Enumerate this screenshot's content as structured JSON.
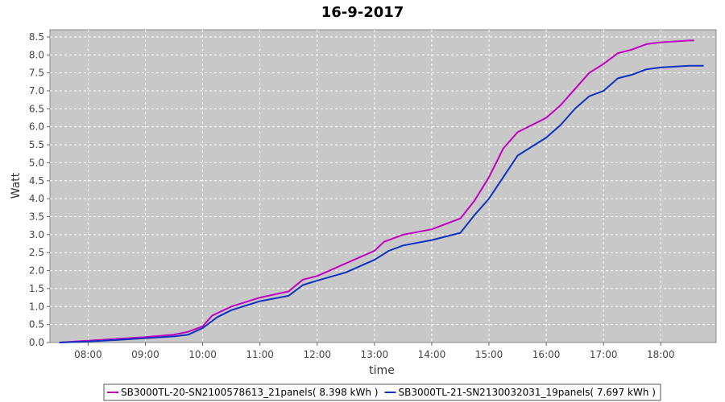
{
  "chart_data": {
    "type": "line",
    "title": "16-9-2017",
    "xlabel": "time",
    "ylabel": "Watt",
    "x_ticks": [
      "08:00",
      "09:00",
      "10:00",
      "11:00",
      "12:00",
      "13:00",
      "14:00",
      "15:00",
      "16:00",
      "17:00",
      "18:00"
    ],
    "x_range": [
      "07:20",
      "18:58"
    ],
    "y_range": [
      0,
      8.7
    ],
    "y_ticks": [
      0.0,
      0.5,
      1.0,
      1.5,
      2.0,
      2.5,
      3.0,
      3.5,
      4.0,
      4.5,
      5.0,
      5.5,
      6.0,
      6.5,
      7.0,
      7.5,
      8.0,
      8.5
    ],
    "grid": true,
    "legend_position": "bottom",
    "plot_background": "#c8c8c8",
    "series": [
      {
        "name": "SB3000TL-20-SN2100578613_21panels( 8.398 kWh )",
        "color": "#c000c0",
        "x": [
          "07:30",
          "08:00",
          "08:30",
          "09:00",
          "09:30",
          "09:45",
          "10:00",
          "10:10",
          "10:30",
          "11:00",
          "11:30",
          "11:45",
          "12:00",
          "12:30",
          "13:00",
          "13:10",
          "13:30",
          "14:00",
          "14:30",
          "14:45",
          "15:00",
          "15:15",
          "15:30",
          "16:00",
          "16:15",
          "16:30",
          "16:45",
          "17:00",
          "17:15",
          "17:30",
          "17:45",
          "18:00",
          "18:30",
          "18:35"
        ],
        "values": [
          0.0,
          0.05,
          0.1,
          0.15,
          0.22,
          0.3,
          0.45,
          0.75,
          1.0,
          1.25,
          1.42,
          1.75,
          1.85,
          2.2,
          2.55,
          2.8,
          3.0,
          3.15,
          3.45,
          3.95,
          4.6,
          5.4,
          5.85,
          6.25,
          6.6,
          7.05,
          7.5,
          7.75,
          8.05,
          8.15,
          8.3,
          8.35,
          8.4,
          8.4
        ]
      },
      {
        "name": "SB3000TL-21-SN2130032031_19panels( 7.697 kWh )",
        "color": "#1030c0",
        "x": [
          "07:30",
          "08:00",
          "08:30",
          "09:00",
          "09:30",
          "09:45",
          "10:00",
          "10:15",
          "10:30",
          "11:00",
          "11:30",
          "11:45",
          "12:00",
          "12:30",
          "13:00",
          "13:15",
          "13:30",
          "14:00",
          "14:30",
          "14:45",
          "15:00",
          "15:30",
          "16:00",
          "16:15",
          "16:30",
          "16:45",
          "17:00",
          "17:15",
          "17:30",
          "17:45",
          "18:00",
          "18:30",
          "18:45"
        ],
        "values": [
          0.0,
          0.03,
          0.07,
          0.12,
          0.17,
          0.22,
          0.4,
          0.7,
          0.9,
          1.15,
          1.3,
          1.6,
          1.72,
          1.95,
          2.3,
          2.55,
          2.7,
          2.85,
          3.05,
          3.55,
          4.0,
          5.2,
          5.7,
          6.05,
          6.5,
          6.85,
          7.0,
          7.35,
          7.45,
          7.6,
          7.65,
          7.7,
          7.7
        ]
      }
    ]
  }
}
